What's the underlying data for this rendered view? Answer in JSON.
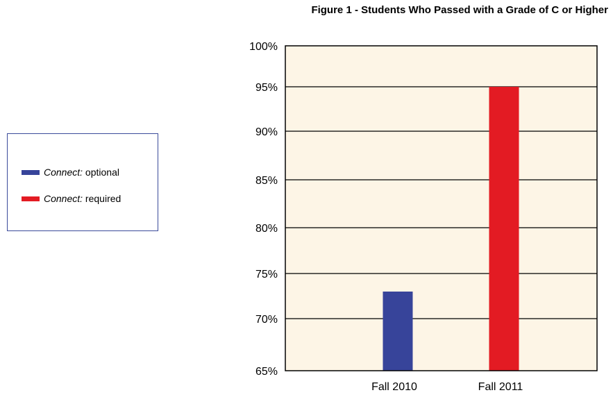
{
  "chart_data": {
    "type": "bar",
    "title": "Figure 1 - Students Who Passed with a Grade of C or Higher",
    "categories": [
      "Fall 2010",
      "Fall 2011"
    ],
    "series": [
      {
        "name": "Connect: optional",
        "values": [
          73,
          null
        ],
        "color": "#37449a"
      },
      {
        "name": "Connect: required",
        "values": [
          null,
          95
        ],
        "color": "#e31b23"
      }
    ],
    "y_ticks": [
      65,
      70,
      75,
      80,
      85,
      90,
      95,
      100
    ],
    "y_tick_labels": [
      "65%",
      "70%",
      "75%",
      "80%",
      "85%",
      "90%",
      "95%",
      "100%"
    ],
    "ylim": [
      65,
      100
    ],
    "xlabel": "",
    "ylabel": "",
    "grid": true,
    "legend_position": "left",
    "background_color": "#fdf5e6"
  },
  "legend": {
    "items": [
      {
        "em": "Connect:",
        "rest": " optional",
        "color": "#37449a"
      },
      {
        "em": "Connect:",
        "rest": " required",
        "color": "#e31b23"
      }
    ]
  }
}
